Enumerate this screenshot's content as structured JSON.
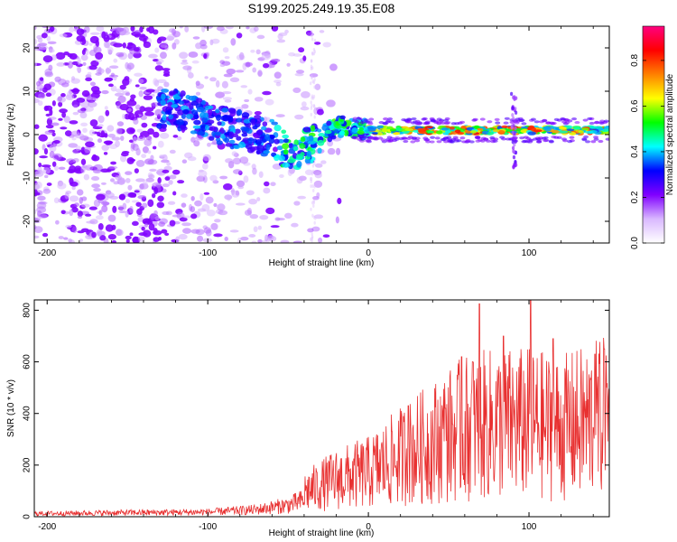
{
  "title": "S199.2025.249.19.35.E08",
  "chart_data": [
    {
      "type": "heatmap",
      "name": "spectrogram",
      "xlabel": "Height of straight line (km)",
      "ylabel": "Frequency (Hz)",
      "xlim": [
        -208,
        150
      ],
      "ylim": [
        -25,
        25
      ],
      "xticks": [
        -200,
        -100,
        0,
        100
      ],
      "xtick_labels": [
        "-200",
        "-100",
        "0",
        "100"
      ],
      "yticks": [
        -20,
        -10,
        0,
        10,
        20
      ],
      "ytick_labels": [
        "-20",
        "-10",
        "0",
        "10",
        "20"
      ],
      "colorbar": {
        "label": "Normalized spectral amplitude",
        "range": [
          0,
          0.95
        ],
        "ticks": [
          0.0,
          0.2,
          0.4,
          0.6,
          0.8
        ],
        "tick_labels": [
          "0.0",
          "0.2",
          "0.4",
          "0.6",
          "0.8"
        ],
        "colormap": [
          "#ffffff",
          "#d9b8ff",
          "#8000ff",
          "#0000ff",
          "#00ffff",
          "#00ff00",
          "#ffff00",
          "#ff8000",
          "#ff0000",
          "#ff0080"
        ]
      },
      "ridge": [
        {
          "x": -120,
          "f": 6
        },
        {
          "x": -100,
          "f": 3
        },
        {
          "x": -80,
          "f": 1
        },
        {
          "x": -60,
          "f": -1
        },
        {
          "x": -48,
          "f": -5
        },
        {
          "x": -40,
          "f": -3
        },
        {
          "x": -30,
          "f": -1
        },
        {
          "x": -20,
          "f": 2
        },
        {
          "x": -10,
          "f": 1.5
        },
        {
          "x": 0,
          "f": 1
        },
        {
          "x": 150,
          "f": 1
        }
      ]
    },
    {
      "type": "line",
      "name": "snr",
      "xlabel": "Height of straight line (km)",
      "ylabel": "SNR (10 * v/v)",
      "xlim": [
        -208,
        150
      ],
      "ylim": [
        0,
        840
      ],
      "xticks": [
        -200,
        -100,
        0,
        100
      ],
      "xtick_labels": [
        "-200",
        "-100",
        "0",
        "100"
      ],
      "yticks": [
        0,
        200,
        400,
        600,
        800
      ],
      "ytick_labels": [
        "0",
        "200",
        "400",
        "600",
        "800"
      ],
      "color": "#e83030",
      "envelope": [
        {
          "x": -208,
          "y": 20
        },
        {
          "x": -160,
          "y": 25
        },
        {
          "x": -100,
          "y": 30
        },
        {
          "x": -70,
          "y": 45
        },
        {
          "x": -50,
          "y": 75
        },
        {
          "x": -35,
          "y": 120
        },
        {
          "x": -20,
          "y": 160
        },
        {
          "x": 0,
          "y": 190
        },
        {
          "x": 20,
          "y": 260
        },
        {
          "x": 40,
          "y": 320
        },
        {
          "x": 60,
          "y": 380
        },
        {
          "x": 80,
          "y": 400
        },
        {
          "x": 100,
          "y": 400
        },
        {
          "x": 120,
          "y": 380
        },
        {
          "x": 150,
          "y": 430
        }
      ],
      "peaks": [
        {
          "x": 25,
          "y": 430
        },
        {
          "x": 48,
          "y": 420
        },
        {
          "x": 58,
          "y": 620
        },
        {
          "x": 65,
          "y": 600
        },
        {
          "x": 69,
          "y": 825
        },
        {
          "x": 84,
          "y": 700
        },
        {
          "x": 101,
          "y": 840
        },
        {
          "x": 115,
          "y": 690
        },
        {
          "x": 141,
          "y": 630
        },
        {
          "x": 147,
          "y": 650
        }
      ]
    }
  ]
}
